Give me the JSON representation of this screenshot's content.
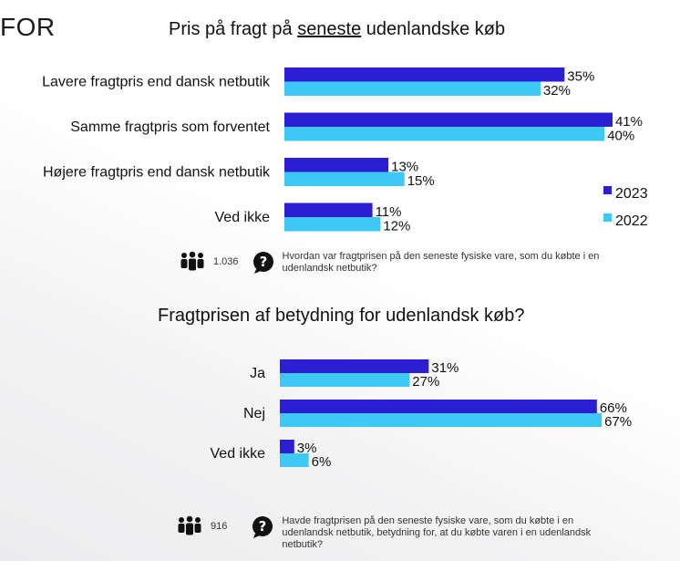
{
  "section_fragment": "FOR",
  "colors": {
    "y2023": "#2c1fd3",
    "y2022": "#3ec8f5"
  },
  "legend": {
    "y2023": "2023",
    "y2022": "2022"
  },
  "chart_data": [
    {
      "type": "bar",
      "orientation": "horizontal",
      "title_before": "Pris på fragt på ",
      "title_underlined": "seneste",
      "title_after": " udenlandske køb",
      "categories": [
        "Lavere fragtpris end dansk netbutik",
        "Samme fragtpris som forventet",
        "Højere fragtpris end dansk netbutik",
        "Ved ikke"
      ],
      "series": [
        {
          "name": "2023",
          "values": [
            35,
            41,
            13,
            11
          ]
        },
        {
          "name": "2022",
          "values": [
            32,
            40,
            15,
            12
          ]
        }
      ],
      "value_suffix": "%",
      "legend_position": "right",
      "grid": false
    },
    {
      "type": "bar",
      "orientation": "horizontal",
      "title": "Fragtprisen af betydning for udenlandsk køb?",
      "categories": [
        "Ja",
        "Nej",
        "Ved ikke"
      ],
      "series": [
        {
          "name": "2023",
          "values": [
            31,
            66,
            3
          ]
        },
        {
          "name": "2022",
          "values": [
            27,
            67,
            6
          ]
        }
      ],
      "value_suffix": "%",
      "grid": false
    }
  ],
  "footnotes": [
    {
      "count": "1.036",
      "icon": "people-icon",
      "question_icon": "question-bubble-icon",
      "question": "Hvordan var fragtprisen på den seneste fysiske vare, som du købte i en udenlandsk netbutik?"
    },
    {
      "count": "916",
      "icon": "people-icon",
      "question_icon": "question-bubble-icon",
      "question": "Havde fragtprisen på den seneste fysiske vare, som du købte i en udenlandsk netbutik, betydning for, at du købte varen i en udenlandsk netbutik?"
    }
  ]
}
